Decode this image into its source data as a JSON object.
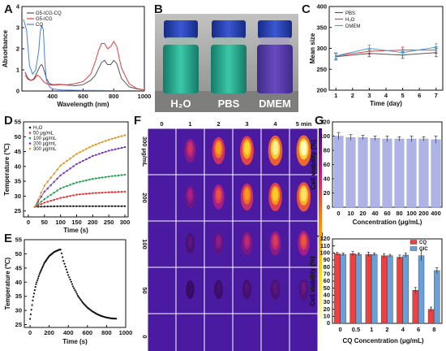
{
  "panel_letters": [
    "A",
    "B",
    "C",
    "D",
    "E",
    "F",
    "G",
    "H"
  ],
  "chart_data": [
    {
      "panel": "A",
      "type": "line",
      "xlabel": "Wavelength (nm)",
      "ylabel": "Absorbance",
      "xlim": [
        200,
        1000
      ],
      "ylim": [
        0,
        4
      ],
      "xticks": [
        400,
        600,
        800,
        1000
      ],
      "yticks": [
        0,
        1,
        2,
        3,
        4
      ],
      "legend_position": "top-left",
      "series": [
        {
          "name": "G5-ICG-CQ",
          "color": "#555555",
          "x": [
            220,
            240,
            260,
            280,
            300,
            320,
            330,
            340,
            350,
            360,
            380,
            400,
            450,
            500,
            550,
            600,
            650,
            680,
            700,
            720,
            740,
            760,
            780,
            800,
            820,
            850,
            900,
            950,
            1000
          ],
          "y": [
            0.9,
            0.6,
            0.5,
            0.6,
            0.9,
            1.2,
            1.25,
            1.1,
            0.85,
            0.6,
            0.35,
            0.3,
            0.32,
            0.28,
            0.25,
            0.3,
            0.5,
            0.75,
            1.05,
            1.35,
            1.45,
            1.25,
            1.25,
            1.45,
            1.3,
            0.6,
            0.2,
            0.1,
            0.05
          ]
        },
        {
          "name": "G5-ICG",
          "color": "#e04040",
          "x": [
            220,
            240,
            260,
            280,
            300,
            320,
            340,
            360,
            380,
            400,
            450,
            500,
            550,
            600,
            650,
            680,
            700,
            720,
            740,
            760,
            780,
            800,
            820,
            850,
            900,
            950,
            1000
          ],
          "y": [
            0.75,
            0.55,
            0.5,
            0.55,
            0.75,
            0.65,
            0.45,
            0.35,
            0.3,
            0.28,
            0.3,
            0.3,
            0.35,
            0.45,
            0.8,
            1.4,
            1.9,
            2.25,
            2.25,
            2.0,
            2.1,
            2.35,
            2.1,
            1.1,
            0.35,
            0.12,
            0.05
          ]
        },
        {
          "name": "CQ",
          "color": "#4a7fd8",
          "x": [
            210,
            230,
            250,
            270,
            290,
            310,
            320,
            330,
            340,
            350,
            360,
            380,
            400,
            450,
            600,
            800,
            1000
          ],
          "y": [
            3.4,
            2.9,
            1.2,
            0.8,
            1.0,
            1.9,
            2.8,
            3.1,
            2.9,
            1.4,
            0.5,
            0.2,
            0.1,
            0.05,
            0.03,
            0.02,
            0.02
          ]
        }
      ]
    },
    {
      "panel": "B",
      "type": "photo",
      "labels": [
        "H₂O",
        "PBS",
        "DMEM"
      ]
    },
    {
      "panel": "C",
      "type": "line",
      "xlabel": "Time (day)",
      "ylabel": "Mean size",
      "xlim": [
        0.6,
        7.4
      ],
      "ylim": [
        200,
        400
      ],
      "xticks": [
        1,
        2,
        3,
        4,
        5,
        6,
        7
      ],
      "yticks": [
        200,
        250,
        300,
        350,
        400
      ],
      "legend_position": "top-left",
      "series": [
        {
          "name": "PBS",
          "color": "#555555",
          "x": [
            1,
            3,
            5,
            7
          ],
          "y": [
            280,
            288,
            284,
            290
          ],
          "err": [
            8,
            8,
            8,
            10
          ]
        },
        {
          "name": "H₂O",
          "color": "#e04040",
          "x": [
            1,
            3,
            5,
            7
          ],
          "y": [
            282,
            293,
            296,
            296
          ],
          "err": [
            7,
            7,
            7,
            8
          ]
        },
        {
          "name": "DMEM",
          "color": "#4a9fd8",
          "x": [
            1,
            3,
            5,
            7
          ],
          "y": [
            282,
            300,
            290,
            303
          ],
          "err": [
            7,
            8,
            7,
            8
          ]
        }
      ]
    },
    {
      "panel": "D",
      "type": "line",
      "xlabel": "Time (s)",
      "ylabel": "Temperature (℃)",
      "xlim": [
        -15,
        310
      ],
      "ylim": [
        23,
        55
      ],
      "xticks": [
        0,
        50,
        100,
        150,
        200,
        250,
        300
      ],
      "yticks": [
        25,
        30,
        35,
        40,
        45,
        50,
        55
      ],
      "legend_position": "top-left",
      "series": [
        {
          "name": "H₂O",
          "color": "#222222",
          "x": [
            20,
            50,
            100,
            150,
            200,
            250,
            300
          ],
          "y": [
            26.4,
            26.5,
            26.6,
            26.6,
            26.6,
            26.6,
            26.6
          ]
        },
        {
          "name": "50 μg/mL",
          "color": "#e03030",
          "x": [
            20,
            50,
            100,
            150,
            200,
            250,
            300
          ],
          "y": [
            26.4,
            27.8,
            29.4,
            30.5,
            31.0,
            31.3,
            31.5
          ]
        },
        {
          "name": "100 μg/mL",
          "color": "#20a050",
          "x": [
            20,
            50,
            100,
            150,
            200,
            250,
            300
          ],
          "y": [
            26.4,
            29.0,
            32.6,
            34.6,
            35.8,
            36.6,
            37.2
          ]
        },
        {
          "name": "200 μg/mL",
          "color": "#7030c0",
          "x": [
            20,
            50,
            100,
            150,
            200,
            250,
            300
          ],
          "y": [
            26.4,
            31.5,
            37.0,
            40.8,
            43.5,
            45.3,
            46.5
          ]
        },
        {
          "name": "300 μg/mL",
          "color": "#e09020",
          "x": [
            20,
            50,
            100,
            150,
            200,
            250,
            300
          ],
          "y": [
            26.4,
            33.5,
            40.3,
            44.2,
            47.0,
            49.0,
            50.5
          ]
        }
      ]
    },
    {
      "panel": "E",
      "type": "scatter",
      "xlabel": "Time (s)",
      "ylabel": "Temperature (℃)",
      "xlim": [
        -60,
        1000
      ],
      "ylim": [
        24,
        55
      ],
      "xticks": [
        0,
        200,
        400,
        600,
        800,
        1000
      ],
      "yticks": [
        25,
        30,
        35,
        40,
        45,
        50,
        55
      ],
      "heating": {
        "x": [
          0,
          30,
          60,
          100,
          150,
          200,
          250,
          300,
          320
        ],
        "y": [
          27,
          34,
          39,
          43,
          46.8,
          49.2,
          50.6,
          51.4,
          51.5
        ]
      },
      "cooling": {
        "x": [
          320,
          350,
          400,
          450,
          500,
          550,
          600,
          650,
          700,
          750,
          800,
          850,
          900
        ],
        "y": [
          51.5,
          47.5,
          42.5,
          38.5,
          35.2,
          32.8,
          31.0,
          29.7,
          28.7,
          28.0,
          27.5,
          27.2,
          27.1
        ]
      }
    },
    {
      "panel": "F",
      "type": "heatmap",
      "times": [
        "0",
        "1",
        "2",
        "3",
        "4",
        "5 min"
      ],
      "rows": [
        "300 μg/mL",
        "200",
        "100",
        "50",
        "0"
      ],
      "intensity": [
        [
          0.0,
          0.45,
          0.72,
          0.85,
          0.95,
          1.0
        ],
        [
          0.0,
          0.35,
          0.55,
          0.7,
          0.82,
          0.9
        ],
        [
          0.0,
          0.18,
          0.3,
          0.4,
          0.48,
          0.55
        ],
        [
          0.0,
          0.05,
          0.1,
          0.14,
          0.18,
          0.22
        ],
        [
          0.0,
          0.0,
          0.0,
          0.0,
          0.0,
          0.0
        ]
      ]
    },
    {
      "panel": "G",
      "type": "bar",
      "xlabel": "Concentration (μg/mL)",
      "ylabel": "Cell viability (%)",
      "categories": [
        "0",
        "10",
        "20",
        "40",
        "60",
        "80",
        "100",
        "200",
        "400"
      ],
      "values": [
        100,
        98,
        98,
        97,
        96,
        96,
        96,
        96,
        95
      ],
      "err": [
        5,
        4,
        3,
        3,
        4,
        3,
        4,
        3,
        5
      ],
      "color": "#aeb3e6",
      "ylim": [
        0,
        120
      ],
      "yticks": [
        0,
        20,
        40,
        60,
        80,
        100,
        120
      ]
    },
    {
      "panel": "H",
      "type": "bar",
      "xlabel": "CQ Concentration (μg/mL)",
      "ylabel": "Cell viability (%)",
      "categories": [
        "0",
        "0.5",
        "1",
        "2",
        "4",
        "6",
        "8"
      ],
      "legend_position": "top-right",
      "series": [
        {
          "name": "CQ",
          "color": "#ee4040",
          "values": [
            99,
            99,
            98,
            96,
            94,
            47,
            20
          ],
          "err": [
            2,
            3,
            3,
            3,
            3,
            4,
            3
          ]
        },
        {
          "name": "GIC",
          "color": "#6a9fd8",
          "values": [
            98,
            98,
            98,
            96,
            97,
            96,
            75
          ],
          "err": [
            2,
            2,
            2,
            2,
            3,
            7,
            4
          ]
        }
      ],
      "ylim": [
        0,
        120
      ],
      "yticks": [
        0,
        10,
        20,
        30,
        40,
        50,
        60,
        70,
        80,
        90,
        100,
        110,
        120
      ]
    }
  ]
}
